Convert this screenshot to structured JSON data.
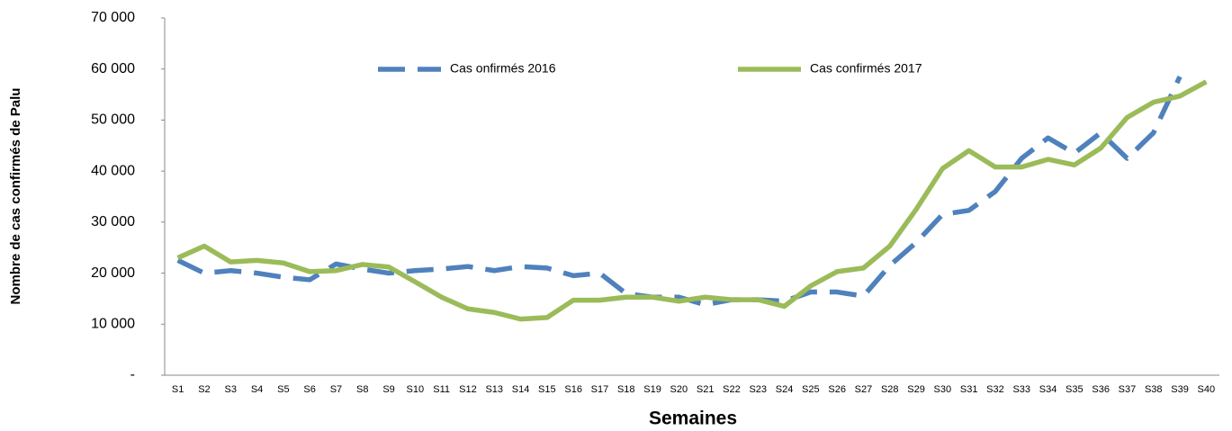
{
  "chart_data": {
    "type": "line",
    "y_label": "Nombre de cas confirmés de Palu",
    "x_label": "Semaines",
    "categories": [
      "S1",
      "S2",
      "S3",
      "S4",
      "S5",
      "S6",
      "S7",
      "S8",
      "S9",
      "S10",
      "S11",
      "S12",
      "S13",
      "S14",
      "S15",
      "S16",
      "S17",
      "S18",
      "S19",
      "S20",
      "S21",
      "S22",
      "S23",
      "S24",
      "S25",
      "S26",
      "S27",
      "S28",
      "S29",
      "S30",
      "S31",
      "S32",
      "S33",
      "S34",
      "S35",
      "S36",
      "S37",
      "S38",
      "S39",
      "S40"
    ],
    "series": [
      {
        "name": "Cas onfirmés 2016",
        "color": "#4f81bd",
        "dashed": true,
        "values": [
          22500,
          20000,
          20500,
          20000,
          19200,
          18700,
          21800,
          20800,
          20000,
          20500,
          20800,
          21300,
          20500,
          21300,
          21000,
          19500,
          20000,
          16000,
          15300,
          15300,
          13800,
          14800,
          14800,
          14500,
          16300,
          16300,
          15500,
          21500,
          26000,
          31500,
          32300,
          36000,
          42500,
          46500,
          43500,
          47500,
          42500,
          47500,
          58500,
          null
        ]
      },
      {
        "name": "Cas confirmés 2017",
        "color": "#9bbb59",
        "dashed": false,
        "values": [
          23000,
          25300,
          22200,
          22500,
          22000,
          20300,
          20500,
          21700,
          21200,
          18300,
          15300,
          13000,
          12300,
          11000,
          11300,
          14700,
          14700,
          15300,
          15300,
          14500,
          15300,
          14800,
          14800,
          13500,
          17500,
          20300,
          21000,
          25300,
          32500,
          40500,
          44000,
          40800,
          40800,
          42300,
          41200,
          44500,
          50500,
          53500,
          54700,
          57500
        ]
      }
    ],
    "ylim": [
      0,
      70000
    ],
    "yticks": [
      {
        "value": 0,
        "label": "-"
      },
      {
        "value": 10000,
        "label": "10 000"
      },
      {
        "value": 20000,
        "label": "20 000"
      },
      {
        "value": 30000,
        "label": "30 000"
      },
      {
        "value": 40000,
        "label": "40 000"
      },
      {
        "value": 50000,
        "label": "50 000"
      },
      {
        "value": 60000,
        "label": "60 000"
      },
      {
        "value": 70000,
        "label": "70 000"
      }
    ],
    "grid": false,
    "legend": "top"
  }
}
